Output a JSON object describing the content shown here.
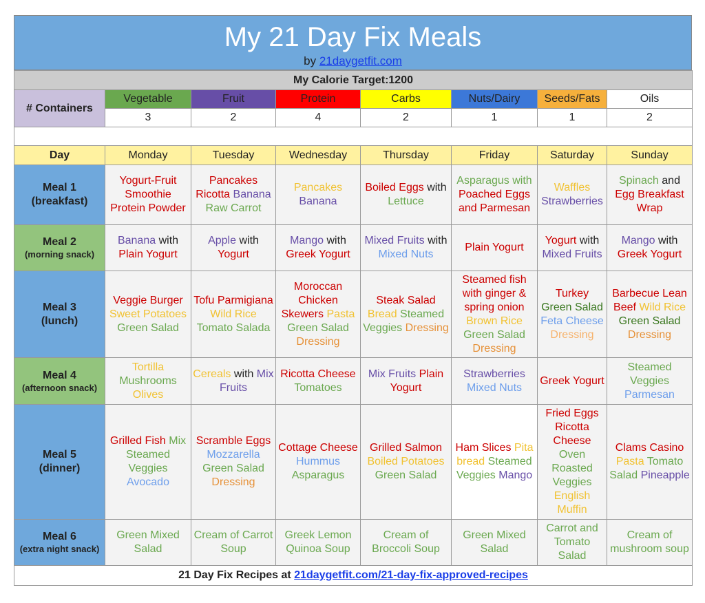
{
  "header": {
    "title": "My 21 Day Fix Meals",
    "by": "by",
    "link": "21daygetfit.com"
  },
  "calorie_target": "My Calorie Target:1200",
  "containers": {
    "label": "# Containers",
    "columns": [
      {
        "name": "Vegetable",
        "count": 3,
        "color": "#6aa84f"
      },
      {
        "name": "Fruit",
        "count": 2,
        "color": "#674ea7"
      },
      {
        "name": "Protein",
        "count": 4,
        "color": "#ff0000"
      },
      {
        "name": "Carbs",
        "count": 2,
        "color": "#ffff00"
      },
      {
        "name": "Nuts/Dairy",
        "count": 1,
        "color": "#3c78d8"
      },
      {
        "name": "Seeds/Fats",
        "count": 1,
        "color": "#f6b03c"
      },
      {
        "name": "Oils",
        "count": 2,
        "color": "#ffffff"
      }
    ]
  },
  "meals": {
    "day_header": "Day",
    "days": [
      "Monday",
      "Tuesday",
      "Wednesday",
      "Thursday",
      "Friday",
      "Saturday",
      "Sunday"
    ],
    "rows": [
      {
        "label": "Meal 1",
        "note": "(breakfast)",
        "color": "#6fa8dc",
        "cells": [
          [
            {
              "text": "Yogurt-Fruit Smoothie Protein Powder",
              "color": "#cc0000"
            }
          ],
          [
            {
              "text": "Pancakes Ricotta",
              "color": "#cc0000"
            },
            {
              "text": "Banana",
              "color": "#674ea7"
            },
            {
              "text": "Raw Carrot",
              "color": "#6aa84f"
            }
          ],
          [
            {
              "text": "Pancakes",
              "color": "#f1c232"
            },
            {
              "text": "Banana",
              "color": "#674ea7"
            }
          ],
          [
            {
              "text": "Boiled Eggs",
              "color": "#cc0000"
            },
            {
              "text": "with",
              "color": "#222222"
            },
            {
              "text": "Lettuce",
              "color": "#6aa84f"
            }
          ],
          [
            {
              "text": "Asparagus with",
              "color": "#6aa84f"
            },
            {
              "text": "Poached Eggs and Parmesan",
              "color": "#cc0000"
            }
          ],
          [
            {
              "text": "Waffles",
              "color": "#f1c232"
            },
            {
              "text": "Strawberries",
              "color": "#674ea7"
            }
          ],
          [
            {
              "text": "Spinach",
              "color": "#6aa84f"
            },
            {
              "text": "and",
              "color": "#222222"
            },
            {
              "text": "Egg Breakfast Wrap",
              "color": "#cc0000"
            }
          ]
        ]
      },
      {
        "label": "Meal 2",
        "note": "(morning snack)",
        "color": "#93c47d",
        "cells": [
          [
            {
              "text": "Banana",
              "color": "#674ea7"
            },
            {
              "text": "with",
              "color": "#222222"
            },
            {
              "text": "Plain Yogurt",
              "color": "#cc0000"
            }
          ],
          [
            {
              "text": "Apple",
              "color": "#674ea7"
            },
            {
              "text": "with",
              "color": "#222222"
            },
            {
              "text": "Yogurt",
              "color": "#cc0000"
            }
          ],
          [
            {
              "text": "Mango",
              "color": "#674ea7"
            },
            {
              "text": "with",
              "color": "#222222"
            },
            {
              "text": "Greek Yogurt",
              "color": "#cc0000"
            }
          ],
          [
            {
              "text": "Mixed Fruits",
              "color": "#674ea7"
            },
            {
              "text": "with",
              "color": "#222222"
            },
            {
              "text": "Mixed Nuts",
              "color": "#6d9eeb"
            }
          ],
          [
            {
              "text": "Plain Yogurt",
              "color": "#cc0000"
            }
          ],
          [
            {
              "text": "Yogurt",
              "color": "#cc0000"
            },
            {
              "text": "with",
              "color": "#222222"
            },
            {
              "text": "Mixed Fruits",
              "color": "#674ea7"
            }
          ],
          [
            {
              "text": "Mango",
              "color": "#674ea7"
            },
            {
              "text": "with",
              "color": "#222222"
            },
            {
              "text": "Greek Yogurt",
              "color": "#cc0000"
            }
          ]
        ]
      },
      {
        "label": "Meal 3",
        "note": "(lunch)",
        "color": "#6fa8dc",
        "cells": [
          [
            {
              "text": "Veggie Burger",
              "color": "#cc0000"
            },
            {
              "text": "Sweet Potatoes",
              "color": "#f1c232"
            },
            {
              "text": "Green Salad",
              "color": "#6aa84f"
            }
          ],
          [
            {
              "text": "Tofu Parmigiana",
              "color": "#cc0000"
            },
            {
              "text": "Wild Rice",
              "color": "#f1c232"
            },
            {
              "text": "Tomato Salada",
              "color": "#6aa84f"
            }
          ],
          [
            {
              "text": "Moroccan Chicken Skewers",
              "color": "#cc0000"
            },
            {
              "text": "Pasta",
              "color": "#f1c232"
            },
            {
              "text": "Green Salad",
              "color": "#6aa84f"
            },
            {
              "text": "Dressing",
              "color": "#e69138"
            }
          ],
          [
            {
              "text": "Steak Salad",
              "color": "#cc0000"
            },
            {
              "text": "Bread",
              "color": "#f1c232"
            },
            {
              "text": "Steamed Veggies",
              "color": "#6aa84f"
            },
            {
              "text": "Dressing",
              "color": "#e69138"
            }
          ],
          [
            {
              "text": "Steamed fish with ginger & spring onion",
              "color": "#cc0000"
            },
            {
              "text": "Brown Rice",
              "color": "#f1c232"
            },
            {
              "text": "Green Salad",
              "color": "#6aa84f"
            },
            {
              "text": "Dressing",
              "color": "#e69138"
            }
          ],
          [
            {
              "text": "Turkey",
              "color": "#cc0000"
            },
            {
              "text": "Green Salad",
              "color": "#38761d"
            },
            {
              "text": "Feta Cheese",
              "color": "#6d9eeb"
            },
            {
              "text": "Dressing",
              "color": "#f6b26b"
            }
          ],
          [
            {
              "text": "Barbecue Lean Beef",
              "color": "#cc0000"
            },
            {
              "text": "Wild Rice",
              "color": "#f1c232"
            },
            {
              "text": "Green Salad",
              "color": "#38761d"
            },
            {
              "text": "Dressing",
              "color": "#e69138"
            }
          ]
        ]
      },
      {
        "label": "Meal 4",
        "note": "(afternoon snack)",
        "color": "#93c47d",
        "cells": [
          [
            {
              "text": "Tortilla",
              "color": "#f1c232"
            },
            {
              "text": "Mushrooms",
              "color": "#6aa84f"
            },
            {
              "text": "Olives",
              "color": "#f1c232"
            }
          ],
          [
            {
              "text": "Cereals",
              "color": "#f1c232"
            },
            {
              "text": "with",
              "color": "#222222"
            },
            {
              "text": "Mix Fruits",
              "color": "#674ea7"
            }
          ],
          [
            {
              "text": "Ricotta Cheese",
              "color": "#cc0000"
            },
            {
              "text": "Tomatoes",
              "color": "#6aa84f"
            }
          ],
          [
            {
              "text": "Mix Fruits",
              "color": "#674ea7"
            },
            {
              "text": "Plain Yogurt",
              "color": "#cc0000"
            }
          ],
          [
            {
              "text": "Strawberries",
              "color": "#674ea7"
            },
            {
              "text": "Mixed Nuts",
              "color": "#6d9eeb"
            }
          ],
          [
            {
              "text": "Greek Yogurt",
              "color": "#cc0000"
            }
          ],
          [
            {
              "text": "Steamed Veggies",
              "color": "#6aa84f"
            },
            {
              "text": "Parmesan",
              "color": "#6d9eeb"
            }
          ]
        ]
      },
      {
        "label": "Meal 5",
        "note": "(dinner)",
        "color": "#6fa8dc",
        "cells": [
          [
            {
              "text": "Grilled Fish",
              "color": "#cc0000"
            },
            {
              "text": "Mix Steamed Veggies",
              "color": "#6aa84f"
            },
            {
              "text": "Avocado",
              "color": "#6d9eeb"
            }
          ],
          [
            {
              "text": "Scramble Eggs",
              "color": "#cc0000"
            },
            {
              "text": "Mozzarella",
              "color": "#6d9eeb"
            },
            {
              "text": "Green Salad",
              "color": "#6aa84f"
            },
            {
              "text": "Dressing",
              "color": "#e69138"
            }
          ],
          [
            {
              "text": "Cottage Cheese",
              "color": "#cc0000"
            },
            {
              "text": "Hummus",
              "color": "#6d9eeb"
            },
            {
              "text": "Asparagus",
              "color": "#6aa84f"
            }
          ],
          [
            {
              "text": "Grilled Salmon",
              "color": "#cc0000"
            },
            {
              "text": "Boiled Potatoes",
              "color": "#f1c232"
            },
            {
              "text": "Green Salad",
              "color": "#6aa84f"
            }
          ],
          [
            {
              "text": "Ham Slices",
              "color": "#cc0000"
            },
            {
              "text": "Pita bread",
              "color": "#f1c232"
            },
            {
              "text": "Steamed Veggies",
              "color": "#6aa84f"
            },
            {
              "text": "Mango",
              "color": "#674ea7"
            }
          ],
          [
            {
              "text": "Fried Eggs Ricotta Cheese",
              "color": "#cc0000"
            },
            {
              "text": "Oven Roasted Veggies",
              "color": "#6aa84f"
            },
            {
              "text": "English Muffin",
              "color": "#f1c232"
            }
          ],
          [
            {
              "text": "Clams Casino",
              "color": "#cc0000"
            },
            {
              "text": "Pasta",
              "color": "#f1c232"
            },
            {
              "text": "Tomato Salad",
              "color": "#6aa84f"
            },
            {
              "text": "Pineapple",
              "color": "#674ea7"
            }
          ]
        ]
      },
      {
        "label": "Meal 6",
        "note": "(extra night snack)",
        "color": "#6fa8dc",
        "cells": [
          [
            {
              "text": "Green Mixed Salad",
              "color": "#6aa84f"
            }
          ],
          [
            {
              "text": "Cream of Carrot Soup",
              "color": "#6aa84f"
            }
          ],
          [
            {
              "text": "Greek Lemon Quinoa Soup",
              "color": "#6aa84f"
            }
          ],
          [
            {
              "text": "Cream of Broccoli Soup",
              "color": "#6aa84f"
            }
          ],
          [
            {
              "text": "Green Mixed Salad",
              "color": "#6aa84f"
            }
          ],
          [
            {
              "text": "Carrot and Tomato Salad",
              "color": "#6aa84f"
            }
          ],
          [
            {
              "text": "Cream of mushroom soup",
              "color": "#6aa84f"
            }
          ]
        ]
      }
    ]
  },
  "footer": {
    "text": "21 Day Fix Recipes at",
    "link": "21daygetfit.com/21-day-fix-approved-recipes"
  }
}
